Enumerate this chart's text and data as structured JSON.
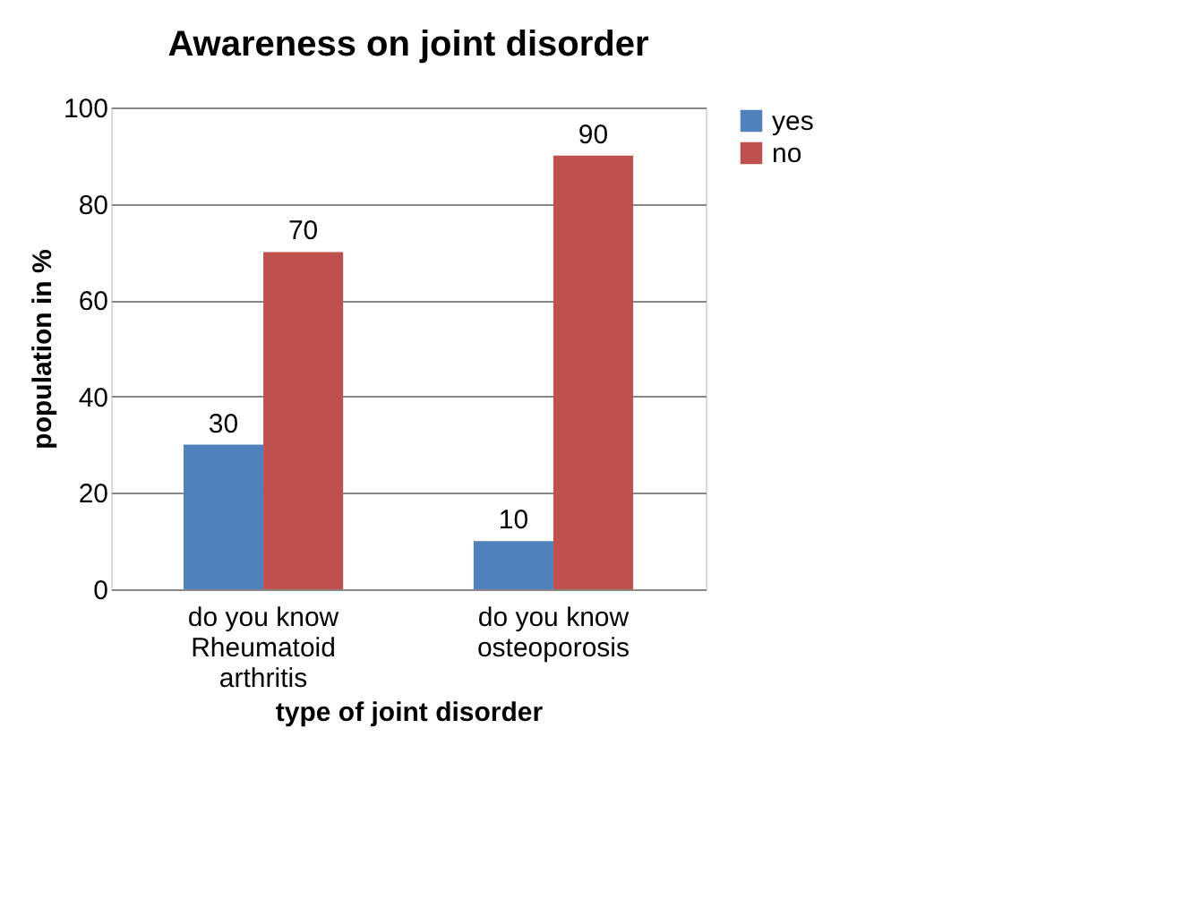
{
  "chart_data": {
    "type": "bar",
    "title": "Awareness on joint disorder",
    "xlabel": "type of joint disorder",
    "ylabel": "population in %",
    "categories": [
      "do you know Rheumatoid arthritis",
      "do you know osteoporosis"
    ],
    "series": [
      {
        "name": "yes",
        "color": "#4f81bd",
        "values": [
          30,
          10
        ]
      },
      {
        "name": "no",
        "color": "#c0504d",
        "values": [
          70,
          90
        ]
      }
    ],
    "ylim": [
      0,
      100
    ],
    "yticks": [
      0,
      20,
      40,
      60,
      80,
      100
    ],
    "grid": "y",
    "legend": "right",
    "data_labels": true
  }
}
